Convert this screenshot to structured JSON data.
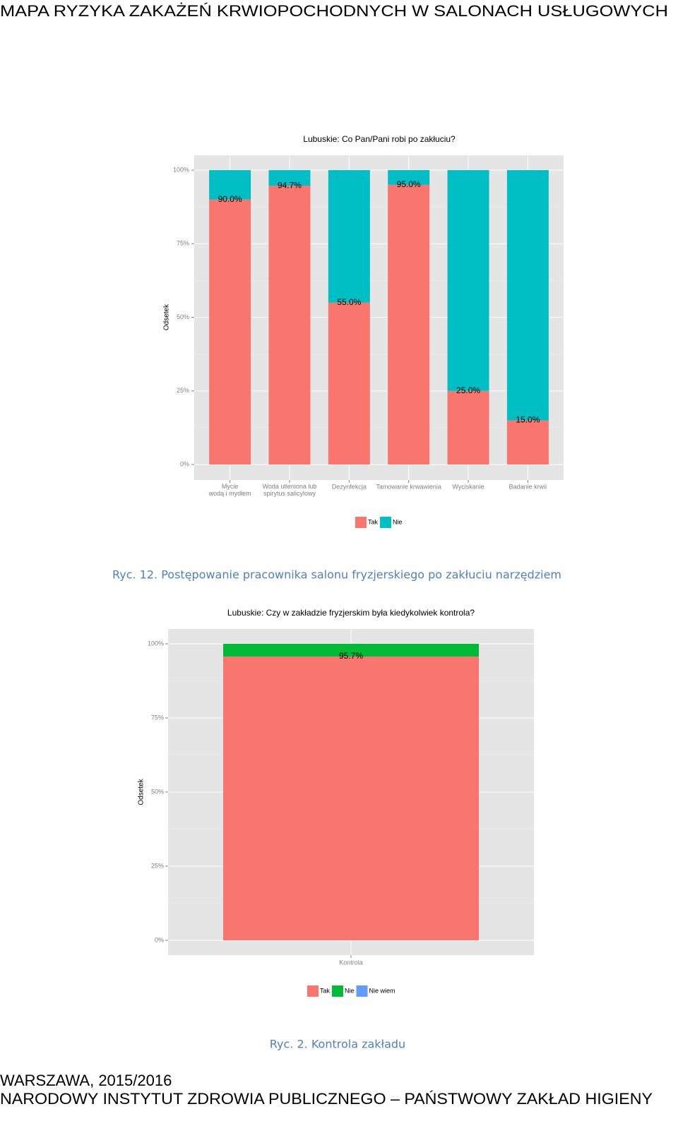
{
  "header": {
    "title": "MAPA RYZYKA ZAKAŻEŃ KRWIOPOCHODNYCH W SALONACH USŁUGOWYCH"
  },
  "chart_data": [
    {
      "type": "bar",
      "stacked": true,
      "title": "Lubuskie: Co Pan/Pani robi po zakłuciu?",
      "ylabel": "Odsetek",
      "categories": [
        "Mycie\nwodą i mydłem",
        "Woda utleniona lub\nspirytus salicylowy",
        "Dezynfekcja",
        "Tamowanie krwawienia",
        "Wyciskanie",
        "Badanie krwii"
      ],
      "series": [
        {
          "name": "Tak",
          "color": "#F8766D",
          "values": [
            90,
            94.7,
            55,
            95,
            25,
            15
          ],
          "value_labels": [
            "90.0%",
            "94.7%",
            "55.0%",
            "95.0%",
            "25.0%",
            "15.0%"
          ]
        },
        {
          "name": "Nie",
          "color": "#00BFC4",
          "values": [
            10,
            5.3,
            45,
            5,
            75,
            85
          ]
        }
      ],
      "ylim": [
        0,
        100
      ],
      "yticks": [
        {
          "value": 0,
          "label": "0%"
        },
        {
          "value": 25,
          "label": "25%"
        },
        {
          "value": 50,
          "label": "50%"
        },
        {
          "value": 75,
          "label": "75%"
        },
        {
          "value": 100,
          "label": "100%"
        }
      ],
      "grid": true,
      "legend": "bottom"
    },
    {
      "type": "bar",
      "stacked": true,
      "title": "Lubuskie: Czy w zakładzie fryzjerskim była kiedykolwiek kontrola?",
      "ylabel": "Odsetek",
      "categories": [
        "Kontrola"
      ],
      "series": [
        {
          "name": "Tak",
          "color": "#F8766D",
          "values": [
            95.7
          ],
          "value_labels": [
            "95.7%"
          ]
        },
        {
          "name": "Nie",
          "color": "#00BA38",
          "values": [
            4.3
          ]
        },
        {
          "name": "Nie wiem",
          "color": "#619CFF",
          "values": [
            0
          ]
        }
      ],
      "ylim": [
        0,
        100
      ],
      "yticks": [
        {
          "value": 0,
          "label": "0%"
        },
        {
          "value": 25,
          "label": "25%"
        },
        {
          "value": 50,
          "label": "50%"
        },
        {
          "value": 75,
          "label": "75%"
        },
        {
          "value": 100,
          "label": "100%"
        }
      ],
      "grid": true,
      "legend": "bottom"
    }
  ],
  "captions": [
    "Ryc. 12. Postępowanie pracownika salonu fryzjerskiego po zakłuciu narzędziem",
    "Ryc. 2. Kontrola zakładu"
  ],
  "footer": {
    "line1": "WARSZAWA, 2015/2016",
    "line2": "NARODOWY INSTYTUT ZDROWIA PUBLICZNEGO – PAŃSTWOWY ZAKŁAD HIGIENY"
  }
}
